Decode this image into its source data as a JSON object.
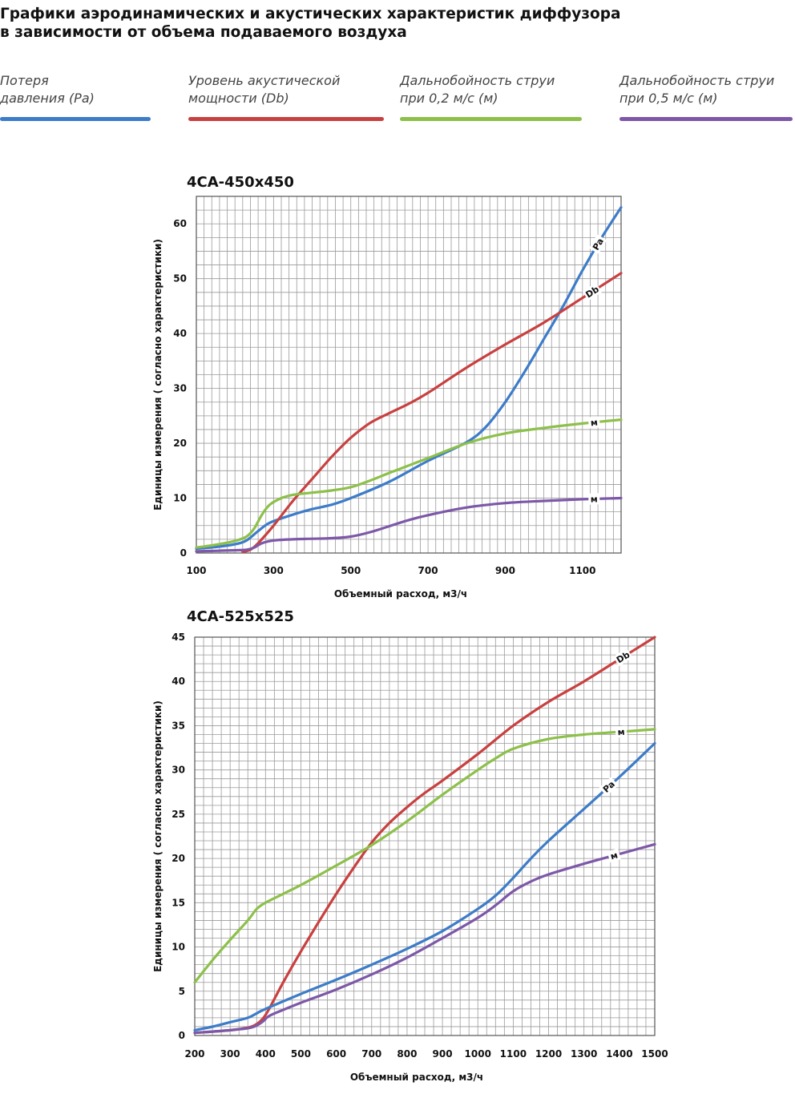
{
  "title_lines": [
    "Графики аэродинамических и акустических характеристик  диффузора",
    "в зависимости от объема подаваемого воздуха"
  ],
  "legend": [
    {
      "line1": "Потеря",
      "line2": "давления (Pa)",
      "color": "#3d7cc9"
    },
    {
      "line1": "Уровень акустической",
      "line2": "мощности (Db)",
      "color": "#c94040"
    },
    {
      "line1": "Дальнобойность струи",
      "line2": "при 0,2 м/с (м)",
      "color": "#8dc04a"
    },
    {
      "line1": "Дальнобойность струи",
      "line2": "при 0,5 м/с (м)",
      "color": "#7d58a8"
    }
  ],
  "chart_data": [
    {
      "type": "line",
      "title": "4CA-450x450",
      "xlabel": "Объемный расход, м3/ч",
      "ylabel": "Единицы измерения ( согласно характеристики)",
      "xlim": [
        100,
        1200
      ],
      "ylim": [
        0,
        65
      ],
      "xticks": [
        100,
        300,
        500,
        700,
        900,
        1100
      ],
      "yticks": [
        0,
        10,
        20,
        30,
        40,
        50,
        60
      ],
      "grid": true,
      "series": [
        {
          "key": "pa",
          "label": "Pa",
          "color": "#3d7cc9",
          "x": [
            100,
            150,
            200,
            230,
            260,
            290,
            350,
            400,
            450,
            500,
            600,
            700,
            800,
            850,
            900,
            950,
            1000,
            1050,
            1100,
            1150,
            1200
          ],
          "y": [
            0.8,
            1.1,
            1.6,
            2.3,
            4.0,
            5.5,
            7.0,
            8.0,
            8.8,
            10.0,
            13.0,
            16.8,
            20.2,
            23.0,
            27.5,
            33.0,
            39.0,
            45.0,
            51.5,
            57.5,
            63.0
          ]
        },
        {
          "key": "db",
          "label": "Db",
          "color": "#c94040",
          "x": [
            220,
            240,
            260,
            300,
            350,
            400,
            450,
            500,
            550,
            600,
            650,
            700,
            800,
            900,
            1000,
            1100,
            1200
          ],
          "y": [
            0.2,
            0.6,
            1.8,
            5.0,
            9.5,
            13.5,
            17.5,
            21.0,
            23.7,
            25.5,
            27.2,
            29.2,
            33.8,
            38.0,
            42.0,
            46.5,
            51.0
          ]
        },
        {
          "key": "m02",
          "label": "м",
          "color": "#8dc04a",
          "x": [
            100,
            150,
            200,
            230,
            250,
            270,
            290,
            320,
            350,
            400,
            450,
            500,
            550,
            600,
            700,
            800,
            900,
            1000,
            1100,
            1200
          ],
          "y": [
            1.0,
            1.5,
            2.2,
            3.0,
            4.5,
            7.0,
            8.8,
            10.0,
            10.6,
            11.0,
            11.4,
            12.0,
            13.2,
            14.6,
            17.3,
            20.0,
            21.8,
            22.8,
            23.6,
            24.3
          ]
        },
        {
          "key": "m05",
          "label": "м",
          "color": "#7d58a8",
          "x": [
            100,
            150,
            200,
            230,
            250,
            270,
            300,
            350,
            400,
            450,
            500,
            550,
            600,
            650,
            700,
            800,
            900,
            1000,
            1100,
            1200
          ],
          "y": [
            0.3,
            0.4,
            0.5,
            0.6,
            1.0,
            1.8,
            2.3,
            2.5,
            2.6,
            2.7,
            3.0,
            3.8,
            4.9,
            6.0,
            6.9,
            8.3,
            9.1,
            9.5,
            9.8,
            10.0
          ]
        }
      ]
    },
    {
      "type": "line",
      "title": "4CA-525x525",
      "xlabel": "Объемный расход, м3/ч",
      "ylabel": "Единицы измерения ( согласно характеристики)",
      "xlim": [
        200,
        1500
      ],
      "ylim": [
        0,
        45
      ],
      "xticks": [
        200,
        300,
        400,
        500,
        600,
        700,
        800,
        900,
        1000,
        1100,
        1200,
        1300,
        1400,
        1500
      ],
      "yticks": [
        0,
        5,
        10,
        15,
        20,
        25,
        30,
        35,
        40,
        45
      ],
      "grid": true,
      "series": [
        {
          "key": "db",
          "label": "Db",
          "color": "#c94040",
          "x": [
            200,
            300,
            360,
            390,
            410,
            450,
            500,
            550,
            600,
            650,
            700,
            750,
            800,
            850,
            900,
            1000,
            1100,
            1200,
            1300,
            1400,
            1500
          ],
          "y": [
            0.3,
            0.6,
            1.0,
            1.8,
            3.0,
            6.0,
            9.5,
            12.8,
            16.0,
            19.0,
            21.8,
            24.0,
            25.8,
            27.4,
            28.8,
            31.8,
            35.0,
            37.7,
            40.0,
            42.5,
            45.0
          ]
        },
        {
          "key": "m02",
          "label": "м",
          "color": "#8dc04a",
          "x": [
            200,
            250,
            300,
            350,
            375,
            400,
            450,
            500,
            600,
            700,
            800,
            900,
            1000,
            1050,
            1100,
            1200,
            1300,
            1400,
            1500
          ],
          "y": [
            6.0,
            8.5,
            10.8,
            13.0,
            14.3,
            15.0,
            16.0,
            17.0,
            19.2,
            21.5,
            24.2,
            27.2,
            30.0,
            31.3,
            32.4,
            33.5,
            34.0,
            34.3,
            34.6
          ]
        },
        {
          "key": "pa",
          "label": "Pa",
          "color": "#3d7cc9",
          "x": [
            200,
            250,
            300,
            350,
            375,
            400,
            500,
            600,
            700,
            800,
            900,
            1000,
            1050,
            1100,
            1150,
            1200,
            1300,
            1400,
            1500
          ],
          "y": [
            0.6,
            1.0,
            1.5,
            2.0,
            2.5,
            3.0,
            4.7,
            6.3,
            8.0,
            9.8,
            11.8,
            14.3,
            15.8,
            17.8,
            20.0,
            22.0,
            25.6,
            29.2,
            33.0
          ]
        },
        {
          "key": "m05",
          "label": "м",
          "color": "#7d58a8",
          "x": [
            200,
            300,
            360,
            390,
            410,
            450,
            500,
            600,
            700,
            800,
            900,
            1000,
            1050,
            1100,
            1150,
            1200,
            1300,
            1400,
            1500
          ],
          "y": [
            0.3,
            0.6,
            0.9,
            1.5,
            2.2,
            2.9,
            3.7,
            5.2,
            6.9,
            8.8,
            11.0,
            13.3,
            14.7,
            16.3,
            17.4,
            18.2,
            19.4,
            20.5,
            21.6
          ]
        }
      ]
    }
  ]
}
